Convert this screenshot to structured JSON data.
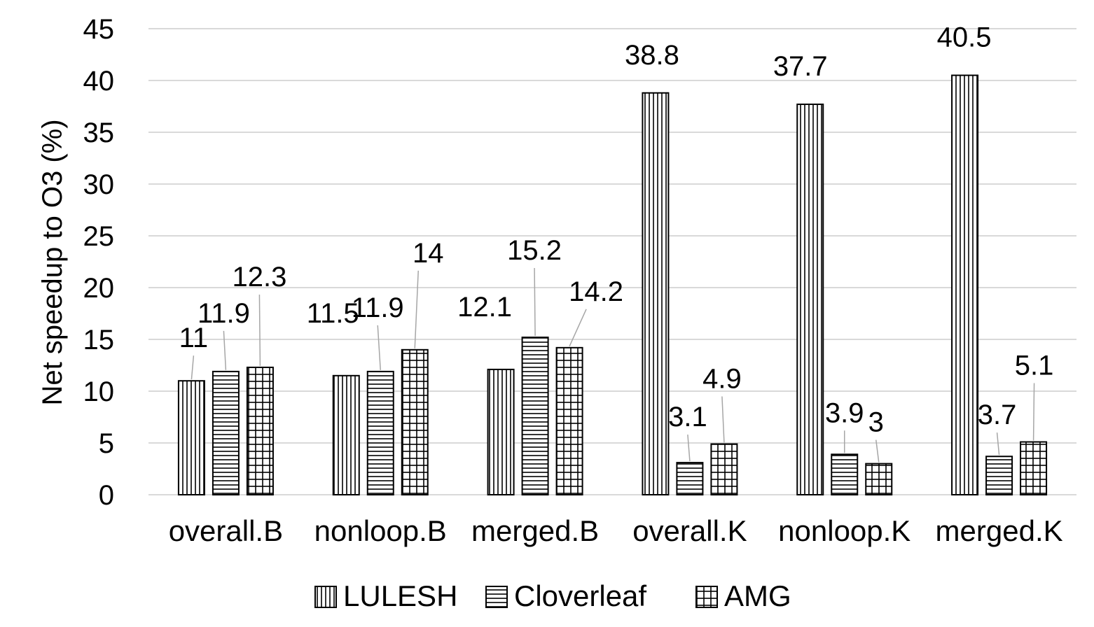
{
  "chart_data": {
    "type": "bar",
    "title": "",
    "xlabel": "",
    "ylabel": "Net speedup to O3 (%)",
    "ylim": [
      0,
      45
    ],
    "yticks": [
      0,
      5,
      10,
      15,
      20,
      25,
      30,
      35,
      40,
      45
    ],
    "grid": true,
    "legend_position": "bottom",
    "categories": [
      "overall.B",
      "nonloop.B",
      "merged.B",
      "overall.K",
      "nonloop.K",
      "merged.K"
    ],
    "series": [
      {
        "name": "LULESH",
        "pattern": "vertical-lines",
        "values": [
          11,
          11.5,
          12.1,
          38.8,
          37.7,
          40.5
        ]
      },
      {
        "name": "Cloverleaf",
        "pattern": "horizontal-lines",
        "values": [
          11.9,
          11.9,
          15.2,
          3.1,
          3.9,
          3.7
        ]
      },
      {
        "name": "AMG",
        "pattern": "grid",
        "values": [
          12.3,
          14,
          14.2,
          4.9,
          3,
          5.1
        ]
      }
    ],
    "data_labels": [
      [
        "11",
        "11.5",
        "12.1",
        "38.8",
        "37.7",
        "40.5"
      ],
      [
        "11.9",
        "11.9",
        "15.2",
        "3.1",
        "3.9",
        "3.7"
      ],
      [
        "12.3",
        "14",
        "14.2",
        "4.9",
        "3",
        "5.1"
      ]
    ],
    "colors": {
      "bar_fill": "#ffffff",
      "bar_stroke": "#000000",
      "grid": "#d9d9d9",
      "leader": "#a6a6a6"
    }
  }
}
